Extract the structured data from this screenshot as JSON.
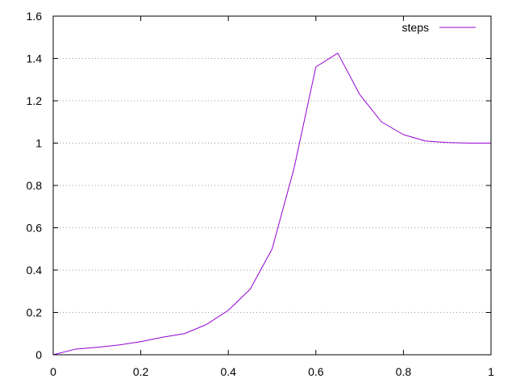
{
  "chart_data": {
    "type": "line",
    "title": "",
    "xlabel": "",
    "ylabel": "",
    "xlim": [
      0,
      1
    ],
    "ylim": [
      0,
      1.6
    ],
    "grid": "horizontal-dotted",
    "legend_position": "top-right",
    "x_ticks": [
      0,
      0.2,
      0.4,
      0.6,
      0.8,
      1
    ],
    "x_tick_labels": [
      "0",
      "0.2",
      "0.4",
      "0.6",
      "0.8",
      "1"
    ],
    "y_ticks": [
      0,
      0.2,
      0.4,
      0.6,
      0.8,
      1,
      1.2,
      1.4,
      1.6
    ],
    "y_tick_labels": [
      "0",
      "0.2",
      "0.4",
      "0.6",
      "0.8",
      "1",
      "1.2",
      "1.4",
      "1.6"
    ],
    "series": [
      {
        "name": "steps",
        "color": "#9400d3",
        "x": [
          0,
          0.05,
          0.1,
          0.15,
          0.2,
          0.25,
          0.3,
          0.35,
          0.4,
          0.45,
          0.5,
          0.55,
          0.6,
          0.65,
          0.7,
          0.75,
          0.8,
          0.85,
          0.9,
          0.95,
          1
        ],
        "y": [
          0,
          0.026,
          0.035,
          0.046,
          0.062,
          0.083,
          0.1,
          0.143,
          0.21,
          0.31,
          0.5,
          0.88,
          1.36,
          1.425,
          1.23,
          1.1,
          1.04,
          1.01,
          1.003,
          1.0,
          1.0
        ]
      }
    ]
  }
}
